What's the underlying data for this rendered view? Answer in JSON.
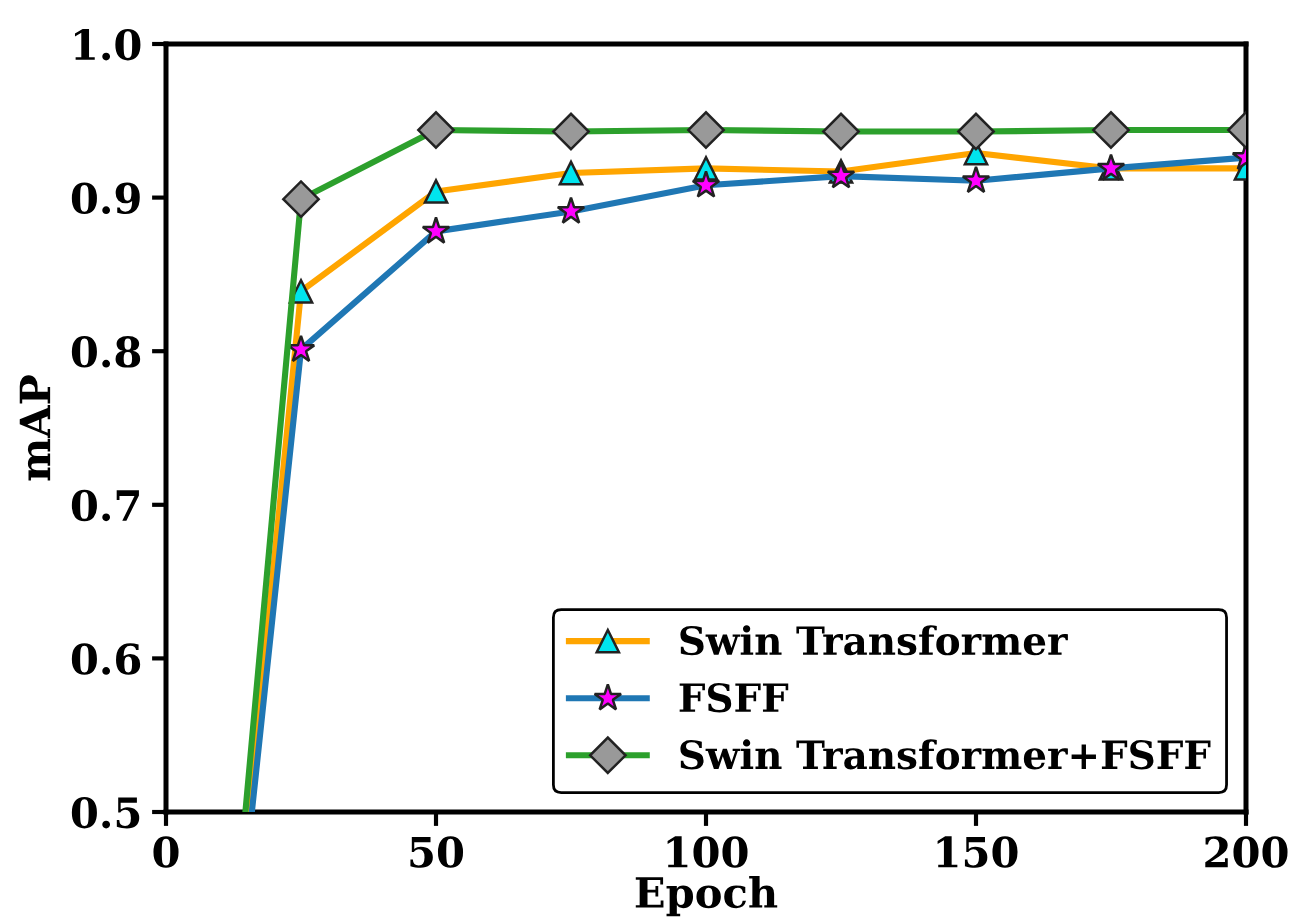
{
  "chart_data": {
    "type": "line",
    "xlabel": "Epoch",
    "ylabel": "mAP",
    "xlim": [
      0,
      200
    ],
    "ylim": [
      0.5,
      1.0
    ],
    "xticks": [
      0,
      50,
      100,
      150,
      200
    ],
    "yticks": [
      0.5,
      0.6,
      0.7,
      0.8,
      0.9,
      {
        "value": 1.0,
        "label": "1.0"
      }
    ],
    "grid": false,
    "legend": "bottom right",
    "series": [
      {
        "name": "Swin Transformer",
        "color": "#ffa500",
        "marker": "triangle",
        "x": [
          15.4,
          25,
          50,
          75,
          100,
          125,
          150,
          175,
          200
        ],
        "values": [
          0.5,
          0.839,
          0.904,
          0.916,
          0.919,
          0.917,
          0.929,
          0.919,
          0.919
        ]
      },
      {
        "name": "FSFF",
        "color": "#1f77b4",
        "marker": "star",
        "x": [
          15.9,
          25,
          50,
          75,
          100,
          125,
          150,
          175,
          200
        ],
        "values": [
          0.5,
          0.801,
          0.878,
          0.891,
          0.908,
          0.914,
          0.911,
          0.919,
          0.926
        ]
      },
      {
        "name": "Swin Transformer+FSFF",
        "color": "#2ca02c",
        "marker": "diamond",
        "x": [
          14.7,
          25,
          50,
          75,
          100,
          125,
          150,
          175,
          200
        ],
        "values": [
          0.5,
          0.899,
          0.944,
          0.943,
          0.944,
          0.943,
          0.943,
          0.944,
          0.944
        ]
      }
    ]
  }
}
